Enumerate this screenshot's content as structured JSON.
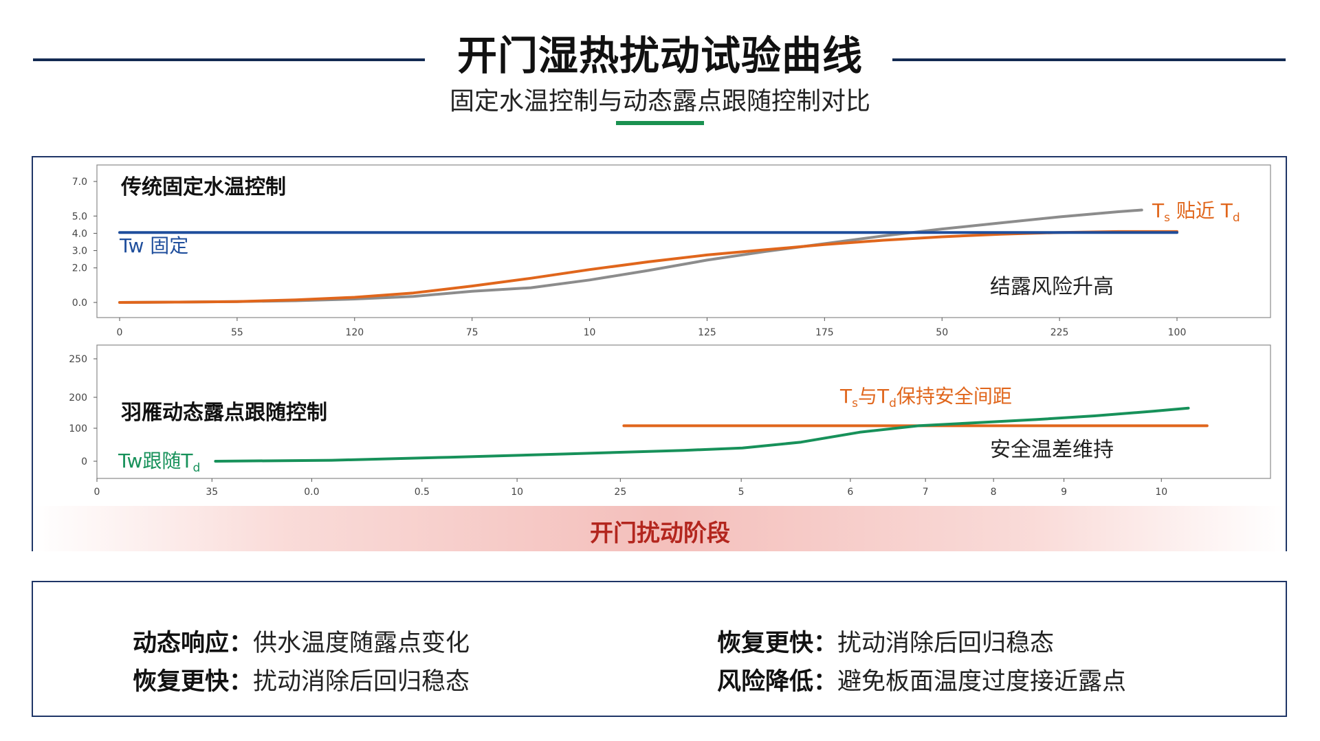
{
  "header": {
    "title": "开门湿热扰动试验曲线",
    "subtitle": "固定水温控制与动态露点跟随控制对比"
  },
  "colors": {
    "navy": "#132a52",
    "blue_line": "#1f4e9c",
    "orange_line": "#e0661c",
    "gray_line": "#8c8c8c",
    "green_line": "#17915a",
    "accent_red": "#b3261e"
  },
  "phase_label": "开门扰动阶段",
  "chart_data": [
    {
      "type": "line",
      "title": "传统固定水温控制",
      "x_tick_labels": [
        "0",
        "55",
        "120",
        "75",
        "10",
        "125",
        "175",
        "50",
        "225",
        "100"
      ],
      "y_ticks": [
        "7.0",
        "5.0",
        "4.0",
        "3.0",
        "2.0",
        "0.0"
      ],
      "y_tick_values": [
        7,
        5,
        4,
        3,
        2,
        0
      ],
      "ylim": [
        0,
        7
      ],
      "x_positions": [
        0,
        1,
        2,
        3,
        4,
        5,
        6,
        7,
        8,
        9
      ],
      "series": [
        {
          "name": "Tw 固定",
          "color": "#1f4e9c",
          "x": [
            0,
            9
          ],
          "y": [
            4.05,
            4.05
          ]
        },
        {
          "name": "",
          "color": "#e0661c",
          "x": [
            0,
            0.5,
            1,
            1.5,
            2,
            2.5,
            3,
            3.5,
            4,
            4.5,
            5,
            5.5,
            6,
            6.5,
            7,
            7.5,
            8,
            8.5,
            9
          ],
          "y": [
            0.0,
            0.02,
            0.05,
            0.15,
            0.3,
            0.55,
            0.95,
            1.4,
            1.9,
            2.35,
            2.75,
            3.05,
            3.35,
            3.6,
            3.8,
            3.95,
            4.05,
            4.1,
            4.1
          ]
        },
        {
          "name": "",
          "color": "#8c8c8c",
          "x": [
            0,
            0.5,
            1,
            1.5,
            2,
            2.5,
            3,
            3.5,
            4,
            4.5,
            5,
            5.5,
            6,
            6.5,
            7,
            7.5,
            8,
            8.5,
            8.7
          ],
          "y": [
            0.0,
            0.02,
            0.05,
            0.1,
            0.2,
            0.35,
            0.65,
            0.85,
            1.3,
            1.85,
            2.45,
            2.95,
            3.4,
            3.85,
            4.25,
            4.6,
            4.95,
            5.25,
            5.35
          ]
        }
      ],
      "annotations": {
        "tw_label": "Tw 固定",
        "ts_label": {
          "a": "T",
          "a_sub": "s",
          "mid": " 贴近 ",
          "b": "T",
          "b_sub": "d"
        },
        "risk": "结露风险升高"
      }
    },
    {
      "type": "line",
      "title": "羽雁动态露点跟随控制",
      "x_tick_labels": [
        "0",
        "35",
        "0.0",
        "0.5",
        "10",
        "25",
        "5",
        "6",
        "7",
        "8",
        "9",
        "10"
      ],
      "x_tick_fractions": [
        0.0,
        0.098,
        0.183,
        0.277,
        0.358,
        0.446,
        0.549,
        0.642,
        0.706,
        0.764,
        0.824,
        0.907
      ],
      "y_ticks": [
        "250",
        "200",
        "100",
        "0"
      ],
      "y_tick_values": [
        250,
        200,
        100,
        0
      ],
      "ylim": [
        0,
        250
      ],
      "series": [
        {
          "name": "",
          "color": "#e0661c",
          "x_frac": [
            0.449,
            0.946
          ],
          "y": [
            108,
            108
          ]
        },
        {
          "name": "Tw跟随Td",
          "color": "#17915a",
          "x_frac": [
            0.101,
            0.2,
            0.3,
            0.4,
            0.5,
            0.55,
            0.6,
            0.65,
            0.7,
            0.75,
            0.8,
            0.85,
            0.9,
            0.93
          ],
          "y": [
            0,
            3,
            12,
            22,
            33,
            40,
            58,
            88,
            108,
            118,
            128,
            140,
            155,
            165
          ]
        }
      ],
      "annotations": {
        "tw_label": {
          "a": "Tw跟随T",
          "a_sub": "d"
        },
        "ts_label": {
          "a": "T",
          "a_sub": "s",
          "mid": "与",
          "b": "T",
          "b_sub": "d",
          "tail": "保持安全间距"
        },
        "safe": "安全温差维持"
      }
    }
  ],
  "summary": {
    "items": [
      {
        "key": "动态响应：",
        "value": "供水温度随露点变化"
      },
      {
        "key": "恢复更快：",
        "value": "扰动消除后回归稳态"
      },
      {
        "key": "恢复更快：",
        "value": "扰动消除后回归稳态"
      },
      {
        "key": "风险降低：",
        "value": "避免板面温度过度接近露点"
      }
    ]
  }
}
